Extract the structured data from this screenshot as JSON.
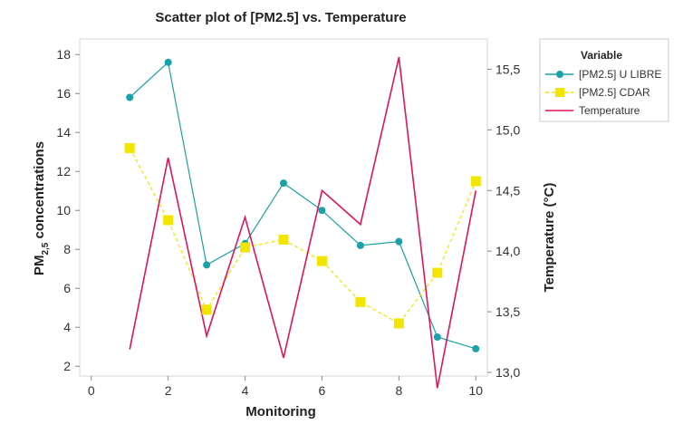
{
  "chart_data": {
    "type": "scatter",
    "title": "Scatter plot of [PM2.5] vs. Temperature",
    "xlabel": "Monitoring",
    "ylabel_left_main": "PM",
    "ylabel_left_sub": "2,5",
    "ylabel_left_rest": " concentrations",
    "ylabel_right": "Temperature (°C)",
    "xlim": [
      -0.3,
      10.3
    ],
    "ylim_left": [
      1.5,
      18.8
    ],
    "ylim_right": [
      12.97,
      15.75
    ],
    "x_ticks": [
      0,
      2,
      4,
      6,
      8,
      10
    ],
    "x_tick_labels": [
      "0",
      "2",
      "4",
      "6",
      "8",
      "10"
    ],
    "y_left_ticks": [
      2,
      4,
      6,
      8,
      10,
      12,
      14,
      16,
      18
    ],
    "y_left_tick_labels": [
      "2",
      "4",
      "6",
      "8",
      "10",
      "12",
      "14",
      "16",
      "18"
    ],
    "y_right_ticks": [
      13.0,
      13.5,
      14.0,
      14.5,
      15.0,
      15.5
    ],
    "y_right_tick_labels": [
      "13,0",
      "13,5",
      "14,0",
      "14,5",
      "15,0",
      "15,5"
    ],
    "legend": {
      "title": "Variable",
      "position": "right",
      "entries": [
        "[PM2.5] U LIBRE",
        "[PM2.5] CDAR",
        "Temperature"
      ]
    },
    "x": [
      1,
      2,
      3,
      4,
      5,
      6,
      7,
      8,
      9,
      10
    ],
    "series": [
      {
        "name": "[PM2.5] U LIBRE",
        "axis": "left",
        "marker": "circle",
        "line": "solid",
        "color": "#1ba2a8",
        "values": [
          15.8,
          17.6,
          7.2,
          8.3,
          11.4,
          10.0,
          8.2,
          8.4,
          3.5,
          2.9
        ]
      },
      {
        "name": "[PM2.5] CDAR",
        "axis": "left",
        "marker": "square",
        "line": "dashed",
        "color": "#f2e600",
        "values": [
          13.2,
          9.5,
          4.9,
          8.1,
          8.5,
          7.4,
          5.3,
          4.2,
          6.8,
          11.5
        ]
      },
      {
        "name": "Temperature",
        "axis": "right",
        "marker": "none",
        "line": "solid",
        "color": "#e0145c",
        "values": [
          13.19,
          14.77,
          13.3,
          14.28,
          13.12,
          14.5,
          14.22,
          15.6,
          12.87,
          14.5
        ]
      }
    ]
  }
}
